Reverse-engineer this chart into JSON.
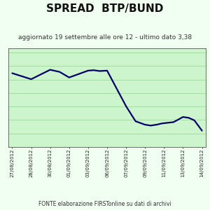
{
  "title": "SPREAD  BTP/BUND",
  "subtitle": "aggiornato 19 settembre alle ore 12 - ultimo dato 3,38",
  "footer": "FONTE elaborazione FIRSTonline su dati di archivi",
  "line_color": "#000066",
  "plot_bg": "#ccf5cc",
  "outer_bg": "#f0fff0",
  "x_labels": [
    "27/08/2012",
    "28/08/2012",
    "30/08/2012",
    "01/09/2012",
    "03/09/2012",
    "06/09/2012",
    "07/09/2012",
    "09/09/2012",
    "11/09/2012",
    "13/09/2012",
    "14/09/2012"
  ],
  "y_values": [
    4.72,
    4.65,
    4.58,
    4.8,
    4.75,
    4.62,
    4.78,
    4.79,
    4.77,
    4.78,
    3.95,
    3.6,
    3.52,
    3.5,
    3.52,
    3.55,
    3.58,
    3.7,
    3.68,
    3.62,
    3.38
  ],
  "x_indices": [
    0,
    0.5,
    1,
    2,
    2.5,
    3,
    4,
    4.3,
    4.6,
    5,
    6,
    6.5,
    7,
    7.3,
    7.6,
    7.9,
    8.5,
    9,
    9.3,
    9.6,
    10
  ],
  "ylim": [
    3.0,
    5.3
  ],
  "xlim": [
    -0.2,
    10.2
  ],
  "line_width": 1.6,
  "title_fontsize": 11,
  "subtitle_fontsize": 6.5,
  "footer_fontsize": 5.5,
  "tick_fontsize": 5,
  "grid_color": "#99dd99",
  "grid_linewidth": 0.6,
  "n_yticks": 8
}
